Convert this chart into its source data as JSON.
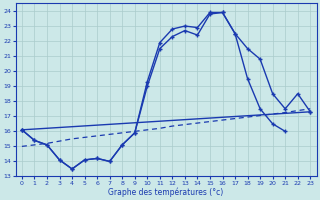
{
  "xlabel": "Graphe des températures (°c)",
  "bg_color": "#cce8e8",
  "grid_color": "#aacccc",
  "line_color": "#1a3ab0",
  "ylim": [
    13,
    24.5
  ],
  "xlim": [
    -0.5,
    23.5
  ],
  "yticks": [
    13,
    14,
    15,
    16,
    17,
    18,
    19,
    20,
    21,
    22,
    23,
    24
  ],
  "xticks": [
    0,
    1,
    2,
    3,
    4,
    5,
    6,
    7,
    8,
    9,
    10,
    11,
    12,
    13,
    14,
    15,
    16,
    17,
    18,
    19,
    20,
    21,
    22,
    23
  ],
  "curve1_x": [
    0,
    1,
    2,
    3,
    4,
    5,
    6,
    7,
    8,
    9,
    10,
    11,
    12,
    13,
    14,
    15,
    16,
    17,
    18,
    19,
    20,
    21,
    22,
    23
  ],
  "curve1_y": [
    16.1,
    15.4,
    15.1,
    14.1,
    13.5,
    14.1,
    14.2,
    14.0,
    15.1,
    15.9,
    19.3,
    21.9,
    22.8,
    23.0,
    22.9,
    23.9,
    23.9,
    22.5,
    21.5,
    20.8,
    18.5,
    17.5,
    18.5,
    17.3
  ],
  "curve2_x": [
    0,
    1,
    2,
    3,
    4,
    5,
    6,
    7,
    8,
    9,
    10,
    11,
    12,
    13,
    14,
    15,
    16,
    17,
    18,
    19,
    20,
    21
  ],
  "curve2_y": [
    16.1,
    15.4,
    15.1,
    14.1,
    13.5,
    14.1,
    14.2,
    14.0,
    15.1,
    15.9,
    19.0,
    21.5,
    22.3,
    22.7,
    22.4,
    23.8,
    23.9,
    22.5,
    19.5,
    17.5,
    16.5,
    16.0
  ],
  "curve3_x": [
    0,
    23
  ],
  "curve3_y": [
    16.1,
    17.3
  ],
  "dash_x": [
    0,
    1,
    2,
    3,
    4,
    5,
    6,
    7,
    8,
    9,
    10,
    11,
    12,
    13,
    14,
    15,
    16,
    17,
    18,
    19,
    20,
    21,
    22,
    23
  ],
  "dash_y": [
    15.0,
    15.1,
    15.2,
    15.35,
    15.5,
    15.6,
    15.7,
    15.8,
    15.9,
    16.0,
    16.1,
    16.2,
    16.35,
    16.45,
    16.55,
    16.65,
    16.75,
    16.85,
    16.95,
    17.05,
    17.15,
    17.25,
    17.38,
    17.5
  ]
}
